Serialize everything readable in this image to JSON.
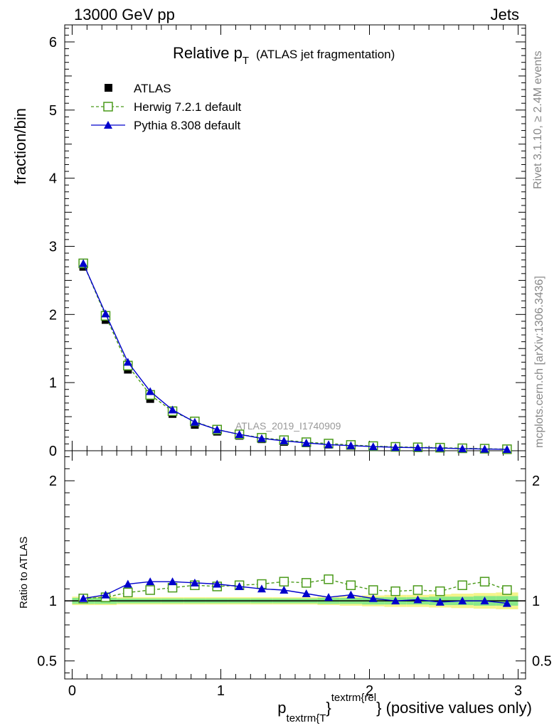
{
  "header": {
    "left": "13000 GeV pp",
    "right": "Jets"
  },
  "title": {
    "main": "Relative p",
    "sub": "T",
    "paren": "(ATLAS jet fragmentation)"
  },
  "side": {
    "rivet": "Rivet 3.1.10, ≥ 2.4M events",
    "mcplots": "mcplots.cern.ch [arXiv:1306.3436]"
  },
  "watermark": "ATLAS_2019_I1740909",
  "colors": {
    "atlas": "#000000",
    "herwig": "#4a9a1a",
    "pythia": "#0000cc",
    "band_inner": "#88e888",
    "band_outer": "#f4f48a"
  },
  "chart_data": [
    {
      "type": "scatter",
      "ylabel": "fraction/bin",
      "xlim": [
        -0.05,
        3.05
      ],
      "ylim": [
        0,
        6.25
      ],
      "y_ticks": [
        "0",
        "1",
        "2",
        "3",
        "4",
        "5",
        "6"
      ],
      "x": [
        0.075,
        0.225,
        0.375,
        0.525,
        0.675,
        0.825,
        0.975,
        1.125,
        1.275,
        1.425,
        1.575,
        1.725,
        1.875,
        2.025,
        2.175,
        2.325,
        2.475,
        2.625,
        2.775,
        2.925
      ],
      "series": [
        {
          "name": "ATLAS",
          "values": [
            2.7,
            1.92,
            1.19,
            0.76,
            0.54,
            0.38,
            0.28,
            0.22,
            0.17,
            0.13,
            0.11,
            0.09,
            0.075,
            0.06,
            0.05,
            0.045,
            0.04,
            0.03,
            0.025,
            0.02
          ]
        },
        {
          "name": "Herwig 7.2.1 default",
          "values": [
            2.75,
            1.98,
            1.25,
            0.82,
            0.58,
            0.43,
            0.31,
            0.24,
            0.19,
            0.155,
            0.125,
            0.105,
            0.085,
            0.068,
            0.057,
            0.05,
            0.045,
            0.036,
            0.03,
            0.022
          ]
        },
        {
          "name": "Pythia 8.308 default",
          "values": [
            2.75,
            2.01,
            1.3,
            0.87,
            0.6,
            0.42,
            0.31,
            0.24,
            0.18,
            0.145,
            0.115,
            0.09,
            0.075,
            0.06,
            0.05,
            0.045,
            0.04,
            0.03,
            0.025,
            0.02
          ]
        }
      ]
    },
    {
      "type": "scatter",
      "ylabel": "Ratio to ATLAS",
      "xlabel_main": "p",
      "xlabel_sub": "textrm{T",
      "xlabel_mid": "}",
      "xlabel_sup": "textrm{rel",
      "xlabel_end": "} (positive values only)",
      "xlim": [
        -0.05,
        3.05
      ],
      "ylim": [
        0.35,
        2.25
      ],
      "x_ticks": [
        "0",
        "1",
        "2",
        "3"
      ],
      "y_ticks": [
        "0.5",
        "1",
        "2"
      ],
      "x": [
        0.075,
        0.225,
        0.375,
        0.525,
        0.675,
        0.825,
        0.975,
        1.125,
        1.275,
        1.425,
        1.575,
        1.725,
        1.875,
        2.025,
        2.175,
        2.325,
        2.475,
        2.625,
        2.775,
        2.925
      ],
      "band_inner": [
        0.025,
        0.025,
        0.02,
        0.02,
        0.02,
        0.02,
        0.02,
        0.02,
        0.02,
        0.02,
        0.02,
        0.025,
        0.025,
        0.03,
        0.03,
        0.03,
        0.035,
        0.035,
        0.04,
        0.04
      ],
      "band_outer": [
        0.035,
        0.035,
        0.03,
        0.03,
        0.03,
        0.03,
        0.03,
        0.03,
        0.03,
        0.03,
        0.03,
        0.035,
        0.04,
        0.045,
        0.05,
        0.05,
        0.055,
        0.06,
        0.065,
        0.07
      ],
      "series": [
        {
          "name": "Herwig 7.2.1 default",
          "values": [
            1.02,
            1.03,
            1.07,
            1.09,
            1.11,
            1.13,
            1.12,
            1.13,
            1.14,
            1.16,
            1.15,
            1.18,
            1.13,
            1.09,
            1.08,
            1.09,
            1.08,
            1.13,
            1.16,
            1.09
          ]
        },
        {
          "name": "Pythia 8.308 default",
          "values": [
            1.02,
            1.05,
            1.14,
            1.16,
            1.16,
            1.15,
            1.14,
            1.12,
            1.1,
            1.09,
            1.06,
            1.03,
            1.05,
            1.02,
            1.0,
            1.01,
            0.99,
            1.0,
            1.0,
            0.98
          ]
        }
      ]
    }
  ]
}
